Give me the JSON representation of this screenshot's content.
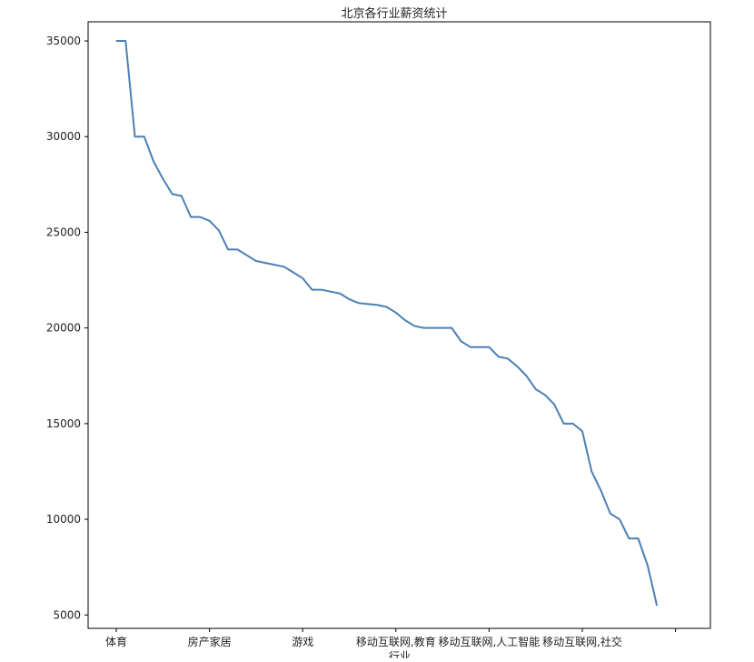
{
  "chart_data": {
    "type": "line",
    "title": "北京各行业薪资统计",
    "xlabel": "行业",
    "ylabel": "",
    "ylim": [
      4300,
      36000
    ],
    "y_ticks": [
      5000,
      10000,
      15000,
      20000,
      25000,
      30000,
      35000
    ],
    "x_tick_labels": [
      {
        "index": 0,
        "label": "体育"
      },
      {
        "index": 10,
        "label": "房产家居"
      },
      {
        "index": 20,
        "label": "游戏"
      },
      {
        "index": 30,
        "label": "移动互联网,教育"
      },
      {
        "index": 40,
        "label": "移动互联网,人工智能"
      },
      {
        "index": 50,
        "label": "移动互联网,社交"
      },
      {
        "index": 60,
        "label": ""
      }
    ],
    "grid": false,
    "legend": "none",
    "series": [
      {
        "color": "#4c7fb5",
        "values": [
          35000,
          35000,
          30000,
          30000,
          28700,
          27800,
          27000,
          26900,
          25800,
          25800,
          25600,
          25100,
          24100,
          24100,
          23800,
          23500,
          23400,
          23300,
          23200,
          22900,
          22600,
          22000,
          22000,
          21900,
          21800,
          21500,
          21300,
          21250,
          21200,
          21100,
          20800,
          20400,
          20100,
          20000,
          20000,
          20000,
          20000,
          19300,
          19000,
          19000,
          19000,
          18500,
          18400,
          18000,
          17500,
          16800,
          16500,
          16000,
          15000,
          15000,
          14600,
          12500,
          11500,
          10300,
          10000,
          9000,
          9000,
          7600,
          5500
        ]
      }
    ]
  }
}
